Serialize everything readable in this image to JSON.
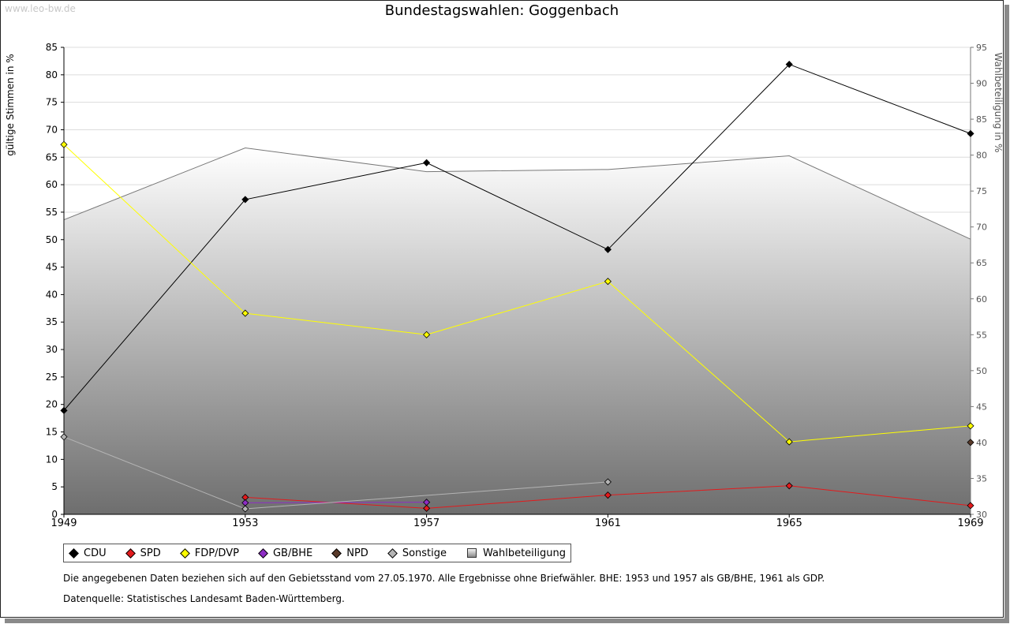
{
  "watermark": "www.leo-bw.de",
  "title": "Bundestagswahlen: Goggenbach",
  "chart_data": {
    "type": "line",
    "title": "Bundestagswahlen: Goggenbach",
    "x": [
      "1949",
      "1953",
      "1957",
      "1961",
      "1965",
      "1969"
    ],
    "ylabel": "gültige Stimmen in %",
    "ylim": [
      0,
      85
    ],
    "yticks": [
      "0",
      "5",
      "10",
      "15",
      "20",
      "25",
      "30",
      "35",
      "40",
      "45",
      "50",
      "55",
      "60",
      "65",
      "70",
      "75",
      "80",
      "85"
    ],
    "y2label": "Wahlbeteiligung in %",
    "y2lim": [
      30,
      95
    ],
    "y2ticks": [
      "30",
      "35",
      "40",
      "45",
      "50",
      "55",
      "60",
      "65",
      "70",
      "75",
      "80",
      "85",
      "90",
      "95"
    ],
    "grid": true,
    "legend_position": "bottom",
    "series": [
      {
        "name": "CDU",
        "color": "#000000",
        "values": [
          18.9,
          57.3,
          64.0,
          48.2,
          81.9,
          69.3
        ]
      },
      {
        "name": "SPD",
        "color": "#e31a1c",
        "values": [
          null,
          3.1,
          1.1,
          3.5,
          5.2,
          1.6
        ]
      },
      {
        "name": "FDP/DVP",
        "color": "#ffff00",
        "values": [
          67.3,
          36.6,
          32.7,
          42.4,
          13.2,
          16.1
        ]
      },
      {
        "name": "GB/BHE",
        "color": "#8e2dc5",
        "values": [
          null,
          2.1,
          2.2,
          null,
          null,
          null
        ]
      },
      {
        "name": "NPD",
        "color": "#5a3a2a",
        "values": [
          null,
          null,
          null,
          null,
          null,
          13.1
        ]
      },
      {
        "name": "Sonstige",
        "color": "#b4b4b4",
        "values": [
          14.1,
          1.0,
          null,
          5.9,
          null,
          null
        ]
      }
    ],
    "area": {
      "name": "Wahlbeteiligung",
      "axis": "right",
      "values": [
        71.0,
        81.0,
        77.7,
        78.0,
        79.9,
        68.3
      ]
    }
  },
  "legend": {
    "items": [
      {
        "label": "CDU",
        "color": "#000000",
        "icon": "diamond"
      },
      {
        "label": "SPD",
        "color": "#e31a1c",
        "icon": "diamond"
      },
      {
        "label": "FDP/DVP",
        "color": "#ffff00",
        "icon": "diamond"
      },
      {
        "label": "GB/BHE",
        "color": "#8e2dc5",
        "icon": "diamond"
      },
      {
        "label": "NPD",
        "color": "#5a3a2a",
        "icon": "diamond"
      },
      {
        "label": "Sonstige",
        "color": "#b4b4b4",
        "icon": "diamond"
      },
      {
        "label": "Wahlbeteiligung",
        "color": "#aaaaaa",
        "icon": "square"
      }
    ]
  },
  "notes": {
    "line1": "Die angegebenen Daten beziehen sich auf den Gebietsstand vom 27.05.1970. Alle Ergebnisse ohne Briefwähler. BHE: 1953 und 1957 als GB/BHE, 1961 als GDP.",
    "line2": "Datenquelle: Statistisches Landesamt Baden-Württemberg."
  }
}
